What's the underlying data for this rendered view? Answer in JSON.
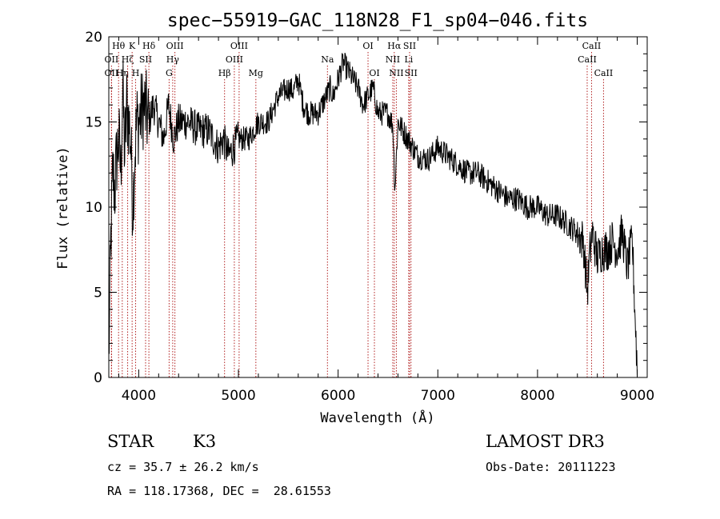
{
  "chart_data": {
    "type": "line",
    "title": "spec−55919−GAC_118N28_F1_sp04−046.fits",
    "xlabel": "Wavelength (Å)",
    "ylabel": "Flux (relative)",
    "xlim": [
      3700,
      9100
    ],
    "ylim": [
      0,
      20
    ],
    "x_ticks": [
      4000,
      5000,
      6000,
      7000,
      8000,
      9000
    ],
    "y_ticks": [
      0,
      5,
      10,
      15,
      20
    ],
    "x_minor_step": 200,
    "y_minor_step": 1,
    "line_color": "#000000",
    "marker_color": "#b22222",
    "series": [
      {
        "name": "flux",
        "x": [
          3700,
          3720,
          3740,
          3760,
          3780,
          3800,
          3820,
          3840,
          3860,
          3880,
          3900,
          3920,
          3940,
          3960,
          3980,
          4000,
          4050,
          4100,
          4150,
          4200,
          4250,
          4300,
          4350,
          4400,
          4500,
          4600,
          4700,
          4800,
          4850,
          4900,
          5000,
          5100,
          5200,
          5300,
          5400,
          5500,
          5550,
          5600,
          5650,
          5700,
          5800,
          5880,
          5920,
          5950,
          6000,
          6050,
          6100,
          6150,
          6200,
          6250,
          6300,
          6350,
          6400,
          6450,
          6500,
          6550,
          6570,
          6600,
          6650,
          6700,
          6800,
          6900,
          7000,
          7100,
          7200,
          7300,
          7400,
          7500,
          7600,
          7700,
          7800,
          7900,
          8000,
          8100,
          8200,
          8300,
          8400,
          8460,
          8500,
          8520,
          8550,
          8600,
          8650,
          8700,
          8750,
          8800,
          8850,
          8900,
          8950,
          9000
        ],
        "y": [
          1,
          8,
          12,
          11,
          13,
          14,
          12,
          17,
          13,
          16,
          15,
          14,
          10,
          13,
          15,
          15,
          16,
          15,
          16,
          15,
          14,
          16,
          14,
          15,
          15,
          14.5,
          14.5,
          13.5,
          14,
          13,
          14,
          14,
          15,
          15,
          16.5,
          17,
          16.8,
          17.5,
          16,
          15.5,
          15.5,
          16.5,
          17,
          16.5,
          17.5,
          18.5,
          18,
          17.5,
          17,
          16,
          16.5,
          17,
          15.5,
          15.5,
          15.5,
          14.8,
          11,
          15,
          14.5,
          14,
          13,
          12.8,
          13.5,
          13,
          12.5,
          12,
          12,
          11.5,
          11,
          10.5,
          10.5,
          10,
          10,
          9.5,
          9.5,
          9,
          8.5,
          8,
          5,
          7,
          8.5,
          7,
          7.5,
          7.5,
          8,
          7.5,
          8.5,
          6.5,
          8,
          0.5
        ]
      }
    ],
    "lines": [
      {
        "label": "Hθ",
        "x": 3798,
        "row": 1
      },
      {
        "label": "OII",
        "x": 3727,
        "row": 2
      },
      {
        "label": "OII",
        "x": 3727,
        "row": 3
      },
      {
        "label": "Hη",
        "x": 3835,
        "row": 3
      },
      {
        "label": "Hζ",
        "x": 3889,
        "row": 2
      },
      {
        "label": "K",
        "x": 3934,
        "row": 1
      },
      {
        "label": "H",
        "x": 3969,
        "row": 3
      },
      {
        "label": "SII",
        "x": 4069,
        "row": 2
      },
      {
        "label": "Hδ",
        "x": 4102,
        "row": 1
      },
      {
        "label": "OIII",
        "x": 4363,
        "row": 1
      },
      {
        "label": "Hγ",
        "x": 4341,
        "row": 2
      },
      {
        "label": "G",
        "x": 4305,
        "row": 3
      },
      {
        "label": "Hβ",
        "x": 4861,
        "row": 3
      },
      {
        "label": "OIII",
        "x": 5007,
        "row": 1
      },
      {
        "label": "OIII",
        "x": 4959,
        "row": 2
      },
      {
        "label": "Mg",
        "x": 5175,
        "row": 3
      },
      {
        "label": "Na",
        "x": 5893,
        "row": 2
      },
      {
        "label": "OI",
        "x": 6300,
        "row": 1
      },
      {
        "label": "OI",
        "x": 6364,
        "row": 3
      },
      {
        "label": "Hα",
        "x": 6563,
        "row": 1
      },
      {
        "label": "NII",
        "x": 6548,
        "row": 2
      },
      {
        "label": "NII",
        "x": 6584,
        "row": 3
      },
      {
        "label": "SII",
        "x": 6717,
        "row": 1
      },
      {
        "label": "Li",
        "x": 6708,
        "row": 2
      },
      {
        "label": "SII",
        "x": 6731,
        "row": 3
      },
      {
        "label": "CaII",
        "x": 8542,
        "row": 1
      },
      {
        "label": "CaII",
        "x": 8498,
        "row": 2
      },
      {
        "label": "CaII",
        "x": 8662,
        "row": 3
      }
    ]
  },
  "info": {
    "object_class": "STAR",
    "subclass": "K3",
    "survey": "LAMOST DR3",
    "cz_line": "cz = 35.7 ± 26.2 km/s",
    "obs_date": "Obs-Date: 20111223",
    "coords_line": "RA = 118.17368, DEC =  28.61553"
  }
}
